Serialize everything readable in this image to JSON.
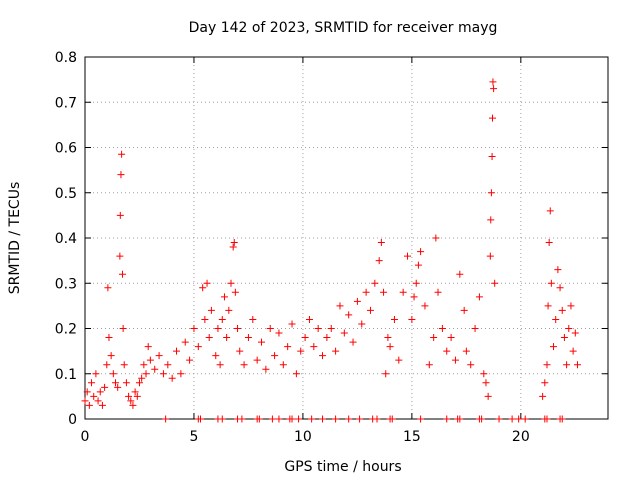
{
  "chart_data": {
    "type": "scatter",
    "title": "Day 142 of 2023, SRMTID for receiver mayg",
    "xlabel": "GPS time / hours",
    "ylabel": "SRMTID / TECUs",
    "xlim": [
      0,
      24
    ],
    "ylim": [
      0,
      0.8
    ],
    "x_ticks": [
      0,
      5,
      10,
      15,
      20
    ],
    "y_ticks": [
      0,
      0.1,
      0.2,
      0.3,
      0.4,
      0.5,
      0.6,
      0.7,
      0.8
    ],
    "grid": true,
    "marker": "+",
    "color": "#ff0000",
    "series": [
      {
        "name": "SRMTID",
        "points": [
          [
            0.0,
            0.04
          ],
          [
            0.1,
            0.06
          ],
          [
            0.2,
            0.03
          ],
          [
            0.3,
            0.08
          ],
          [
            0.4,
            0.05
          ],
          [
            0.5,
            0.1
          ],
          [
            0.6,
            0.04
          ],
          [
            0.7,
            0.06
          ],
          [
            0.8,
            0.03
          ],
          [
            0.9,
            0.07
          ],
          [
            1.0,
            0.12
          ],
          [
            1.05,
            0.29
          ],
          [
            1.1,
            0.18
          ],
          [
            1.2,
            0.14
          ],
          [
            1.3,
            0.1
          ],
          [
            1.4,
            0.08
          ],
          [
            1.5,
            0.07
          ],
          [
            1.6,
            0.36
          ],
          [
            1.62,
            0.45
          ],
          [
            1.65,
            0.54
          ],
          [
            1.68,
            0.585
          ],
          [
            1.72,
            0.32
          ],
          [
            1.75,
            0.2
          ],
          [
            1.8,
            0.12
          ],
          [
            1.9,
            0.08
          ],
          [
            2.0,
            0.05
          ],
          [
            2.1,
            0.04
          ],
          [
            2.2,
            0.03
          ],
          [
            2.3,
            0.06
          ],
          [
            2.4,
            0.05
          ],
          [
            2.5,
            0.08
          ],
          [
            2.6,
            0.09
          ],
          [
            2.7,
            0.12
          ],
          [
            2.8,
            0.1
          ],
          [
            2.9,
            0.16
          ],
          [
            3.0,
            0.13
          ],
          [
            3.2,
            0.11
          ],
          [
            3.4,
            0.14
          ],
          [
            3.6,
            0.1
          ],
          [
            3.8,
            0.12
          ],
          [
            4.0,
            0.09
          ],
          [
            4.2,
            0.15
          ],
          [
            4.4,
            0.1
          ],
          [
            4.6,
            0.17
          ],
          [
            4.8,
            0.13
          ],
          [
            5.0,
            0.2
          ],
          [
            5.2,
            0.16
          ],
          [
            5.4,
            0.29
          ],
          [
            5.5,
            0.22
          ],
          [
            5.6,
            0.3
          ],
          [
            5.7,
            0.18
          ],
          [
            5.8,
            0.24
          ],
          [
            6.0,
            0.14
          ],
          [
            6.1,
            0.2
          ],
          [
            6.2,
            0.12
          ],
          [
            6.3,
            0.22
          ],
          [
            6.4,
            0.27
          ],
          [
            6.5,
            0.18
          ],
          [
            6.6,
            0.24
          ],
          [
            6.7,
            0.3
          ],
          [
            6.8,
            0.38
          ],
          [
            6.85,
            0.39
          ],
          [
            6.9,
            0.28
          ],
          [
            7.0,
            0.2
          ],
          [
            7.1,
            0.15
          ],
          [
            7.3,
            0.12
          ],
          [
            7.5,
            0.18
          ],
          [
            7.7,
            0.22
          ],
          [
            7.9,
            0.13
          ],
          [
            8.1,
            0.17
          ],
          [
            8.3,
            0.11
          ],
          [
            8.5,
            0.2
          ],
          [
            8.7,
            0.14
          ],
          [
            8.9,
            0.19
          ],
          [
            9.1,
            0.12
          ],
          [
            9.3,
            0.16
          ],
          [
            9.5,
            0.21
          ],
          [
            9.7,
            0.1
          ],
          [
            9.9,
            0.15
          ],
          [
            10.1,
            0.18
          ],
          [
            10.3,
            0.22
          ],
          [
            10.5,
            0.16
          ],
          [
            10.7,
            0.2
          ],
          [
            10.9,
            0.14
          ],
          [
            11.1,
            0.18
          ],
          [
            11.3,
            0.2
          ],
          [
            11.5,
            0.15
          ],
          [
            11.7,
            0.25
          ],
          [
            11.9,
            0.19
          ],
          [
            12.1,
            0.23
          ],
          [
            12.3,
            0.17
          ],
          [
            12.5,
            0.26
          ],
          [
            12.7,
            0.21
          ],
          [
            12.9,
            0.28
          ],
          [
            13.1,
            0.24
          ],
          [
            13.3,
            0.3
          ],
          [
            13.5,
            0.35
          ],
          [
            13.6,
            0.39
          ],
          [
            13.7,
            0.28
          ],
          [
            13.8,
            0.1
          ],
          [
            13.9,
            0.18
          ],
          [
            14.0,
            0.16
          ],
          [
            14.2,
            0.22
          ],
          [
            14.4,
            0.13
          ],
          [
            14.6,
            0.28
          ],
          [
            14.8,
            0.36
          ],
          [
            15.0,
            0.22
          ],
          [
            15.1,
            0.27
          ],
          [
            15.2,
            0.3
          ],
          [
            15.3,
            0.34
          ],
          [
            15.4,
            0.37
          ],
          [
            15.6,
            0.25
          ],
          [
            15.8,
            0.12
          ],
          [
            16.0,
            0.18
          ],
          [
            16.1,
            0.4
          ],
          [
            16.2,
            0.28
          ],
          [
            16.4,
            0.2
          ],
          [
            16.6,
            0.15
          ],
          [
            16.8,
            0.18
          ],
          [
            17.0,
            0.13
          ],
          [
            17.2,
            0.32
          ],
          [
            17.4,
            0.24
          ],
          [
            17.5,
            0.15
          ],
          [
            17.7,
            0.12
          ],
          [
            17.9,
            0.2
          ],
          [
            18.1,
            0.27
          ],
          [
            18.3,
            0.1
          ],
          [
            18.4,
            0.08
          ],
          [
            18.5,
            0.05
          ],
          [
            18.6,
            0.36
          ],
          [
            18.62,
            0.44
          ],
          [
            18.65,
            0.5
          ],
          [
            18.68,
            0.58
          ],
          [
            18.7,
            0.665
          ],
          [
            18.72,
            0.745
          ],
          [
            18.75,
            0.73
          ],
          [
            18.8,
            0.3
          ],
          [
            21.0,
            0.05
          ],
          [
            21.1,
            0.08
          ],
          [
            21.2,
            0.12
          ],
          [
            21.25,
            0.25
          ],
          [
            21.3,
            0.39
          ],
          [
            21.35,
            0.46
          ],
          [
            21.4,
            0.3
          ],
          [
            21.5,
            0.16
          ],
          [
            21.6,
            0.22
          ],
          [
            21.7,
            0.33
          ],
          [
            21.8,
            0.29
          ],
          [
            21.9,
            0.24
          ],
          [
            22.0,
            0.18
          ],
          [
            22.1,
            0.12
          ],
          [
            22.2,
            0.2
          ],
          [
            22.3,
            0.25
          ],
          [
            22.4,
            0.15
          ],
          [
            22.5,
            0.19
          ],
          [
            22.6,
            0.12
          ]
        ],
        "zeros": [
          3.7,
          5.2,
          5.3,
          6.1,
          6.3,
          7.0,
          7.2,
          7.9,
          8.0,
          8.6,
          8.9,
          9.4,
          9.5,
          9.8,
          10.4,
          10.9,
          11.5,
          12.1,
          12.6,
          13.2,
          13.4,
          14.0,
          14.1,
          15.4,
          16.6,
          17.1,
          17.2,
          18.1,
          18.2,
          19.0,
          19.6,
          19.9,
          20.2,
          21.1,
          21.2,
          21.8,
          21.9
        ]
      }
    ]
  }
}
